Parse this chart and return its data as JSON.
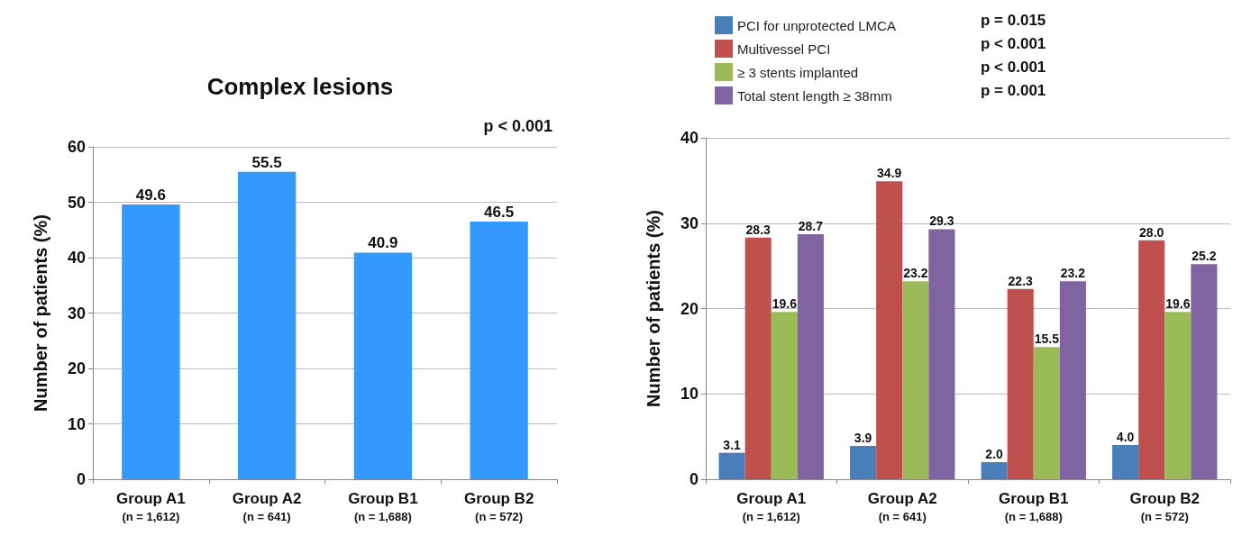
{
  "chart_data": [
    {
      "type": "bar",
      "title": "Complex lesions",
      "ylabel": "Number of patients (%)",
      "categories": [
        "Group A1\n(n = 1,612)",
        "Group A2\n(n = 641)",
        "Group B1\n(n = 1,688)",
        "Group B2\n(n = 572)"
      ],
      "values": [
        49.6,
        55.5,
        40.9,
        46.5
      ],
      "color": "#3399ff",
      "ylim": [
        0,
        60
      ],
      "yticks": [
        0,
        10,
        20,
        30,
        40,
        50,
        60
      ],
      "grid": "y",
      "data_labels": true,
      "annotations": [
        "p < 0.001"
      ]
    },
    {
      "type": "bar",
      "ylabel": "Number of patients (%)",
      "categories": [
        "Group A1\n(n = 1,612)",
        "Group A2\n(n = 641)",
        "Group B1\n(n = 1,688)",
        "Group B2\n(n = 572)"
      ],
      "ylim": [
        0,
        40
      ],
      "yticks": [
        0,
        10,
        20,
        30,
        40
      ],
      "grid": "y",
      "legend": "top left",
      "annotations": [
        "p = 0.015",
        "p < 0.001",
        "p < 0.001",
        "p = 0.001"
      ],
      "series": [
        {
          "name": "PCI for unprotected LMCA",
          "color": "#4a7ebb",
          "values": [
            3.1,
            3.9,
            2.0,
            4.0
          ],
          "value_labels": [
            "3.1",
            "3.9",
            "2.0",
            "4.0"
          ]
        },
        {
          "name": "Multivessel PCI",
          "color": "#c0504d",
          "values": [
            28.3,
            34.9,
            22.3,
            28.0
          ],
          "value_labels": [
            "28.3",
            "34.9",
            "22.3",
            "28.0"
          ]
        },
        {
          "name": "≥ 3 stents implanted",
          "color": "#9bbb59",
          "values": [
            19.6,
            23.2,
            15.5,
            19.6
          ],
          "value_labels": [
            "19.6",
            "23.2",
            "15.5",
            "19.6"
          ]
        },
        {
          "name": "Total stent length ≥ 38mm",
          "color": "#8064a2",
          "values": [
            28.7,
            29.3,
            23.2,
            25.2
          ],
          "value_labels": [
            "28.7",
            "29.3",
            "23.2",
            "25.2"
          ]
        }
      ]
    }
  ]
}
